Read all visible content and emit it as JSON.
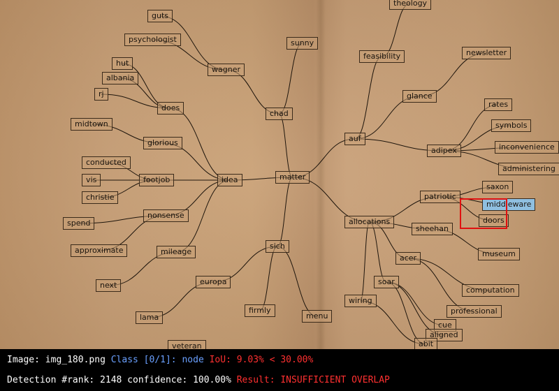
{
  "diagram": {
    "nodes": [
      {
        "id": "guts",
        "label": "guts"
      },
      {
        "id": "psychologist",
        "label": "psychologist"
      },
      {
        "id": "wagner",
        "label": "wagner"
      },
      {
        "id": "hut",
        "label": "hut"
      },
      {
        "id": "albania",
        "label": "albania"
      },
      {
        "id": "rj",
        "label": "rj"
      },
      {
        "id": "does",
        "label": "does"
      },
      {
        "id": "midtown",
        "label": "midtown"
      },
      {
        "id": "glorious",
        "label": "glorious"
      },
      {
        "id": "conducted",
        "label": "conducted"
      },
      {
        "id": "vis",
        "label": "vis"
      },
      {
        "id": "christie",
        "label": "christie"
      },
      {
        "id": "footjob",
        "label": "footjob"
      },
      {
        "id": "idea",
        "label": "idea"
      },
      {
        "id": "spend",
        "label": "spend"
      },
      {
        "id": "nonsense",
        "label": "nonsense"
      },
      {
        "id": "approximate",
        "label": "approximate"
      },
      {
        "id": "mileage",
        "label": "mileage"
      },
      {
        "id": "next",
        "label": "next"
      },
      {
        "id": "europa",
        "label": "europa"
      },
      {
        "id": "lama",
        "label": "lama"
      },
      {
        "id": "veteran",
        "label": "veteran"
      },
      {
        "id": "sunny",
        "label": "sunny"
      },
      {
        "id": "chad",
        "label": "chad"
      },
      {
        "id": "matter",
        "label": "matter"
      },
      {
        "id": "sich",
        "label": "sich"
      },
      {
        "id": "firmly",
        "label": "firmly"
      },
      {
        "id": "menu",
        "label": "menu"
      },
      {
        "id": "theology",
        "label": "theology"
      },
      {
        "id": "feasibility",
        "label": "feasibility"
      },
      {
        "id": "newsletter",
        "label": "newsletter"
      },
      {
        "id": "glance",
        "label": "glance"
      },
      {
        "id": "auf",
        "label": "auf"
      },
      {
        "id": "rates",
        "label": "rates"
      },
      {
        "id": "symbols",
        "label": "symbols"
      },
      {
        "id": "inconvenience",
        "label": "inconvenience"
      },
      {
        "id": "adipex",
        "label": "adipex"
      },
      {
        "id": "administering",
        "label": "administering"
      },
      {
        "id": "patriotic",
        "label": "patriotic"
      },
      {
        "id": "saxon",
        "label": "saxon"
      },
      {
        "id": "middleware",
        "label": "middleware"
      },
      {
        "id": "doors",
        "label": "doors"
      },
      {
        "id": "allocations",
        "label": "allocations"
      },
      {
        "id": "sheehan",
        "label": "sheehan"
      },
      {
        "id": "museum",
        "label": "museum"
      },
      {
        "id": "acer",
        "label": "acer"
      },
      {
        "id": "computation",
        "label": "computation"
      },
      {
        "id": "soar",
        "label": "soar"
      },
      {
        "id": "professional",
        "label": "professional"
      },
      {
        "id": "wiring",
        "label": "wiring"
      },
      {
        "id": "cue",
        "label": "cue"
      },
      {
        "id": "aligned",
        "label": "aligned"
      },
      {
        "id": "abit",
        "label": "abit"
      }
    ],
    "edges": [
      [
        "wagner",
        "guts"
      ],
      [
        "wagner",
        "psychologist"
      ],
      [
        "chad",
        "wagner"
      ],
      [
        "does",
        "hut"
      ],
      [
        "does",
        "albania"
      ],
      [
        "does",
        "rj"
      ],
      [
        "idea",
        "does"
      ],
      [
        "glorious",
        "midtown"
      ],
      [
        "idea",
        "glorious"
      ],
      [
        "footjob",
        "conducted"
      ],
      [
        "footjob",
        "vis"
      ],
      [
        "footjob",
        "christie"
      ],
      [
        "idea",
        "footjob"
      ],
      [
        "nonsense",
        "spend"
      ],
      [
        "nonsense",
        "approximate"
      ],
      [
        "idea",
        "nonsense"
      ],
      [
        "mileage",
        "next"
      ],
      [
        "idea",
        "mileage"
      ],
      [
        "matter",
        "idea"
      ],
      [
        "chad",
        "sunny"
      ],
      [
        "matter",
        "chad"
      ],
      [
        "matter",
        "sich"
      ],
      [
        "sich",
        "europa"
      ],
      [
        "europa",
        "lama"
      ],
      [
        "sich",
        "firmly"
      ],
      [
        "sich",
        "menu"
      ],
      [
        "feasibility",
        "theology"
      ],
      [
        "auf",
        "feasibility"
      ],
      [
        "glance",
        "newsletter"
      ],
      [
        "auf",
        "glance"
      ],
      [
        "adipex",
        "rates"
      ],
      [
        "adipex",
        "symbols"
      ],
      [
        "adipex",
        "inconvenience"
      ],
      [
        "adipex",
        "administering"
      ],
      [
        "auf",
        "adipex"
      ],
      [
        "matter",
        "auf"
      ],
      [
        "patriotic",
        "saxon"
      ],
      [
        "patriotic",
        "middleware"
      ],
      [
        "patriotic",
        "doors"
      ],
      [
        "allocations",
        "patriotic"
      ],
      [
        "sheehan",
        "museum"
      ],
      [
        "allocations",
        "sheehan"
      ],
      [
        "acer",
        "computation"
      ],
      [
        "acer",
        "professional"
      ],
      [
        "allocations",
        "acer"
      ],
      [
        "soar",
        "cue"
      ],
      [
        "soar",
        "aligned"
      ],
      [
        "soar",
        "abit"
      ],
      [
        "allocations",
        "soar"
      ],
      [
        "allocations",
        "wiring"
      ],
      [
        "wiring",
        "abit"
      ],
      [
        "matter",
        "allocations"
      ]
    ],
    "highlighted": [
      "middleware"
    ]
  },
  "status": {
    "image_label": "Image:",
    "image_name": "img_180.png",
    "class_text": "Class [0/1]: node",
    "iou_text": "IoU: 9.03% < 30.00%",
    "detection_text": "Detection #rank: 2148 confidence: 100.00%",
    "result_text": "Result: INSUFFICIENT OVERLAP",
    "colors": {
      "class": "#6aa0ff",
      "fail": "#ff3030",
      "bbox": "#e01010",
      "highlight": "#8fbfe0"
    }
  }
}
